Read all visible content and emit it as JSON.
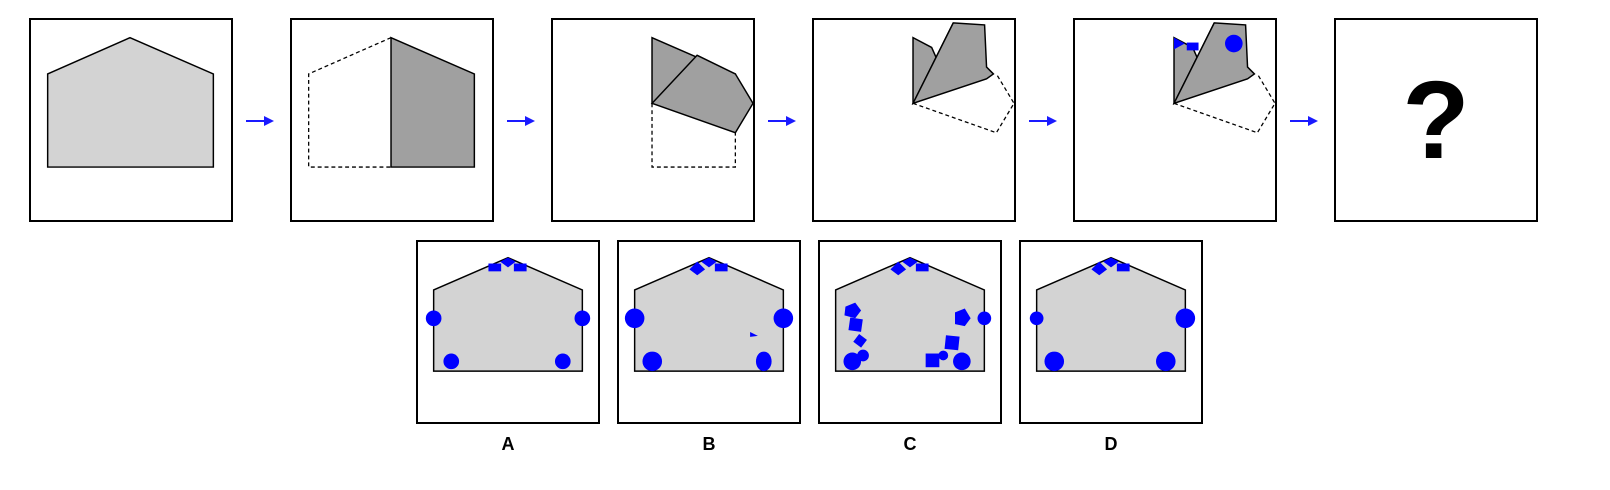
{
  "puzzle": {
    "question_mark": "?",
    "arrow_color": "#1a1aff",
    "fill_light": "#d3d3d3",
    "fill_dark": "#a0a0a0",
    "shape_blue": "#0000ff"
  },
  "options": [
    {
      "label": "A"
    },
    {
      "label": "B"
    },
    {
      "label": "C"
    },
    {
      "label": "D"
    }
  ]
}
